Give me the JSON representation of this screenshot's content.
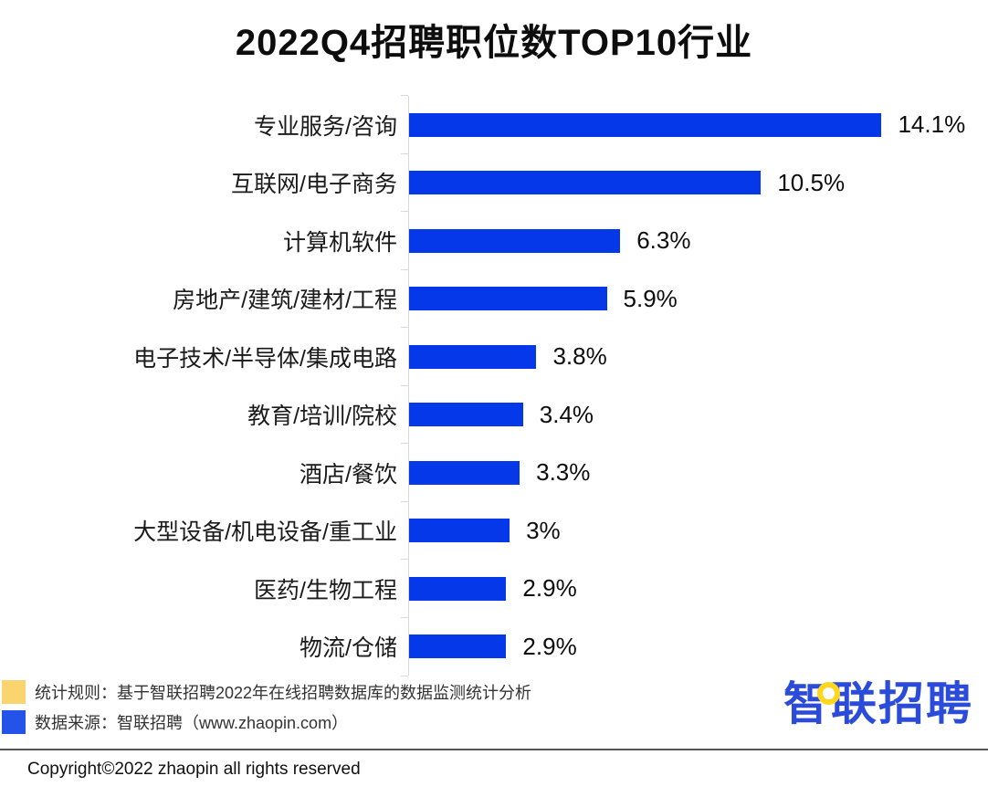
{
  "title": "2022Q4招聘职位数TOP10行业",
  "chart_data": {
    "type": "bar",
    "orientation": "horizontal",
    "title": "2022Q4招聘职位数TOP10行业",
    "categories": [
      "专业服务/咨询",
      "互联网/电子商务",
      "计算机软件",
      "房地产/建筑/建材/工程",
      "电子技术/半导体/集成电路",
      "教育/培训/院校",
      "酒店/餐饮",
      "大型设备/机电设备/重工业",
      "医药/生物工程",
      "物流/仓储"
    ],
    "values": [
      14.1,
      10.5,
      6.3,
      5.9,
      3.8,
      3.4,
      3.3,
      3,
      2.9,
      2.9
    ],
    "value_labels": [
      "14.1%",
      "10.5%",
      "6.3%",
      "5.9%",
      "3.8%",
      "3.4%",
      "3.3%",
      "3%",
      "2.9%",
      "2.9%"
    ],
    "unit": "%",
    "xlim": [
      0,
      15
    ],
    "grid": false,
    "legend": "none",
    "bar_color": "#0538e8",
    "axis_color": "#d9d9d9"
  },
  "notes": [
    {
      "text": "统计规则：基于智联招聘2022年在线招聘数据库的数据监测统计分析",
      "swatch_color": "#fad46e",
      "swatch_style": "background:#fad46e"
    },
    {
      "text": "数据来源：智联招聘（www.zhaopin.com）",
      "swatch_color": "#2353e9",
      "swatch_style": "background:#2353e9"
    }
  ],
  "logo": {
    "text": "智联招聘",
    "color": "#2b4bdb",
    "accent_color": "#ffd71f"
  },
  "footer": {
    "copyright_text": "Copyright©2022 zhaopin all rights reserved"
  }
}
